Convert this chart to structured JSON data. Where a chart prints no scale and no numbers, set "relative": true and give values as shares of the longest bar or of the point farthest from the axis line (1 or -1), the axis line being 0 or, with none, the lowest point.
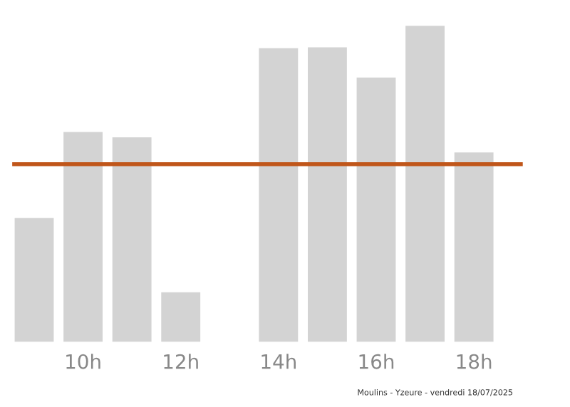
{
  "chart_data": {
    "type": "bar",
    "relative": true,
    "categories": [
      null,
      "10h",
      null,
      "12h",
      null,
      "14h",
      null,
      "16h",
      null,
      "18h",
      null
    ],
    "values": [
      0.392,
      0.664,
      0.647,
      0.157,
      null,
      0.929,
      0.932,
      0.836,
      1,
      0.599,
      null
    ],
    "color": "#d3d3d3",
    "ref_lines": [
      {
        "axis": "y",
        "value": 0.562,
        "color": "#c0561a"
      }
    ],
    "annotations": [
      "Moulins - Yzeure - vendredi 18/07/2025"
    ],
    "grid": false,
    "legend": false
  }
}
